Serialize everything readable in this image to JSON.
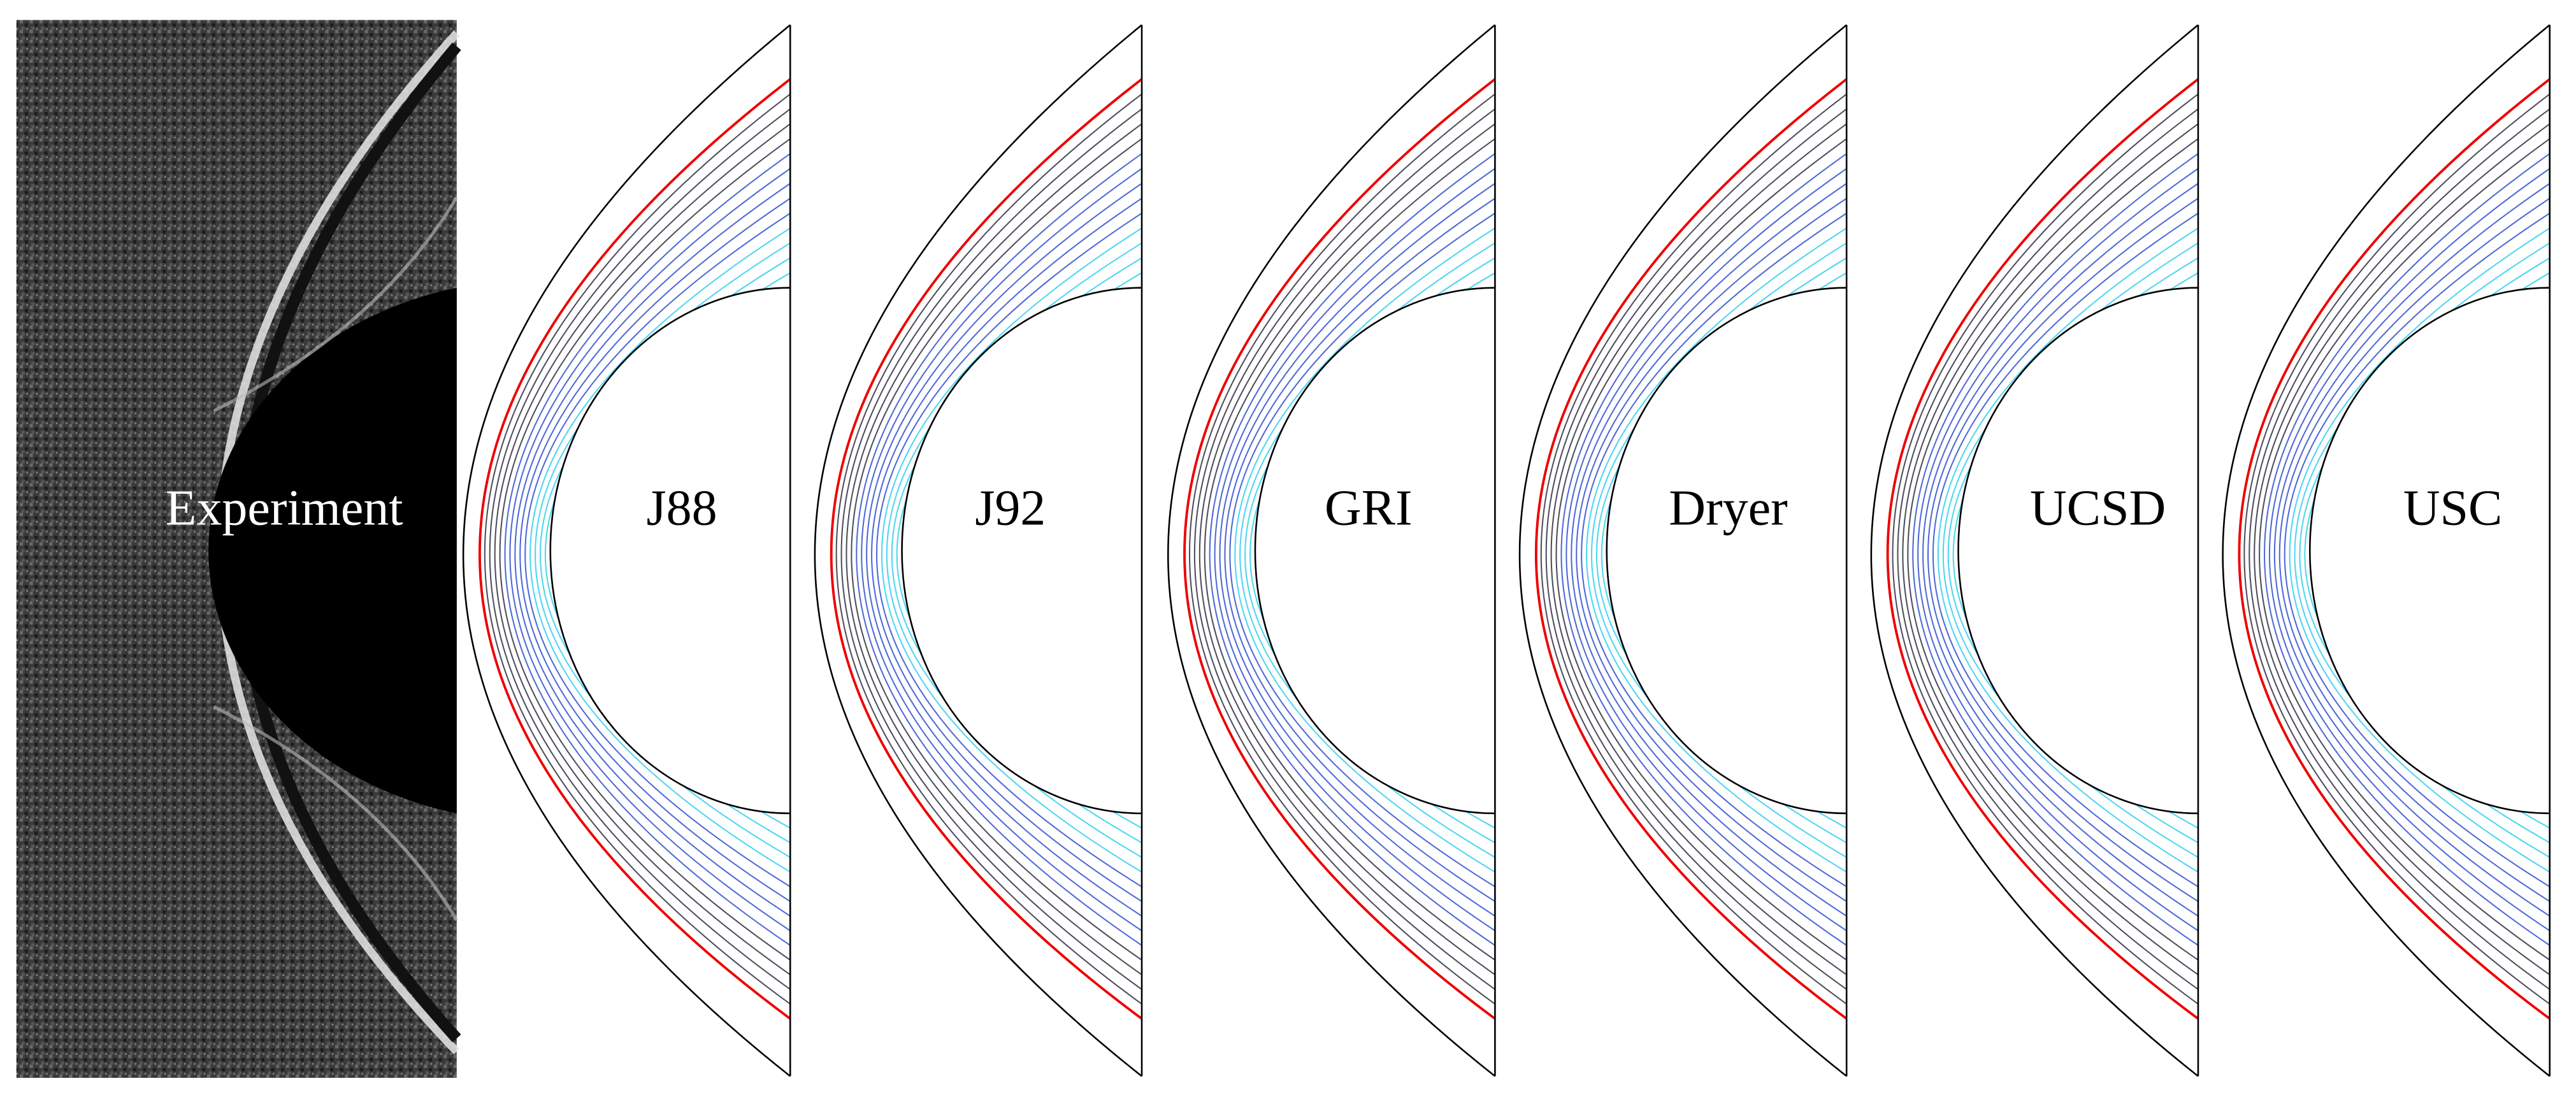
{
  "panels": [
    {
      "label": "Experiment"
    },
    {
      "label": "J88"
    },
    {
      "label": "J92"
    },
    {
      "label": "GRI"
    },
    {
      "label": "Dryer"
    },
    {
      "label": "UCSD"
    },
    {
      "label": "USC"
    }
  ]
}
